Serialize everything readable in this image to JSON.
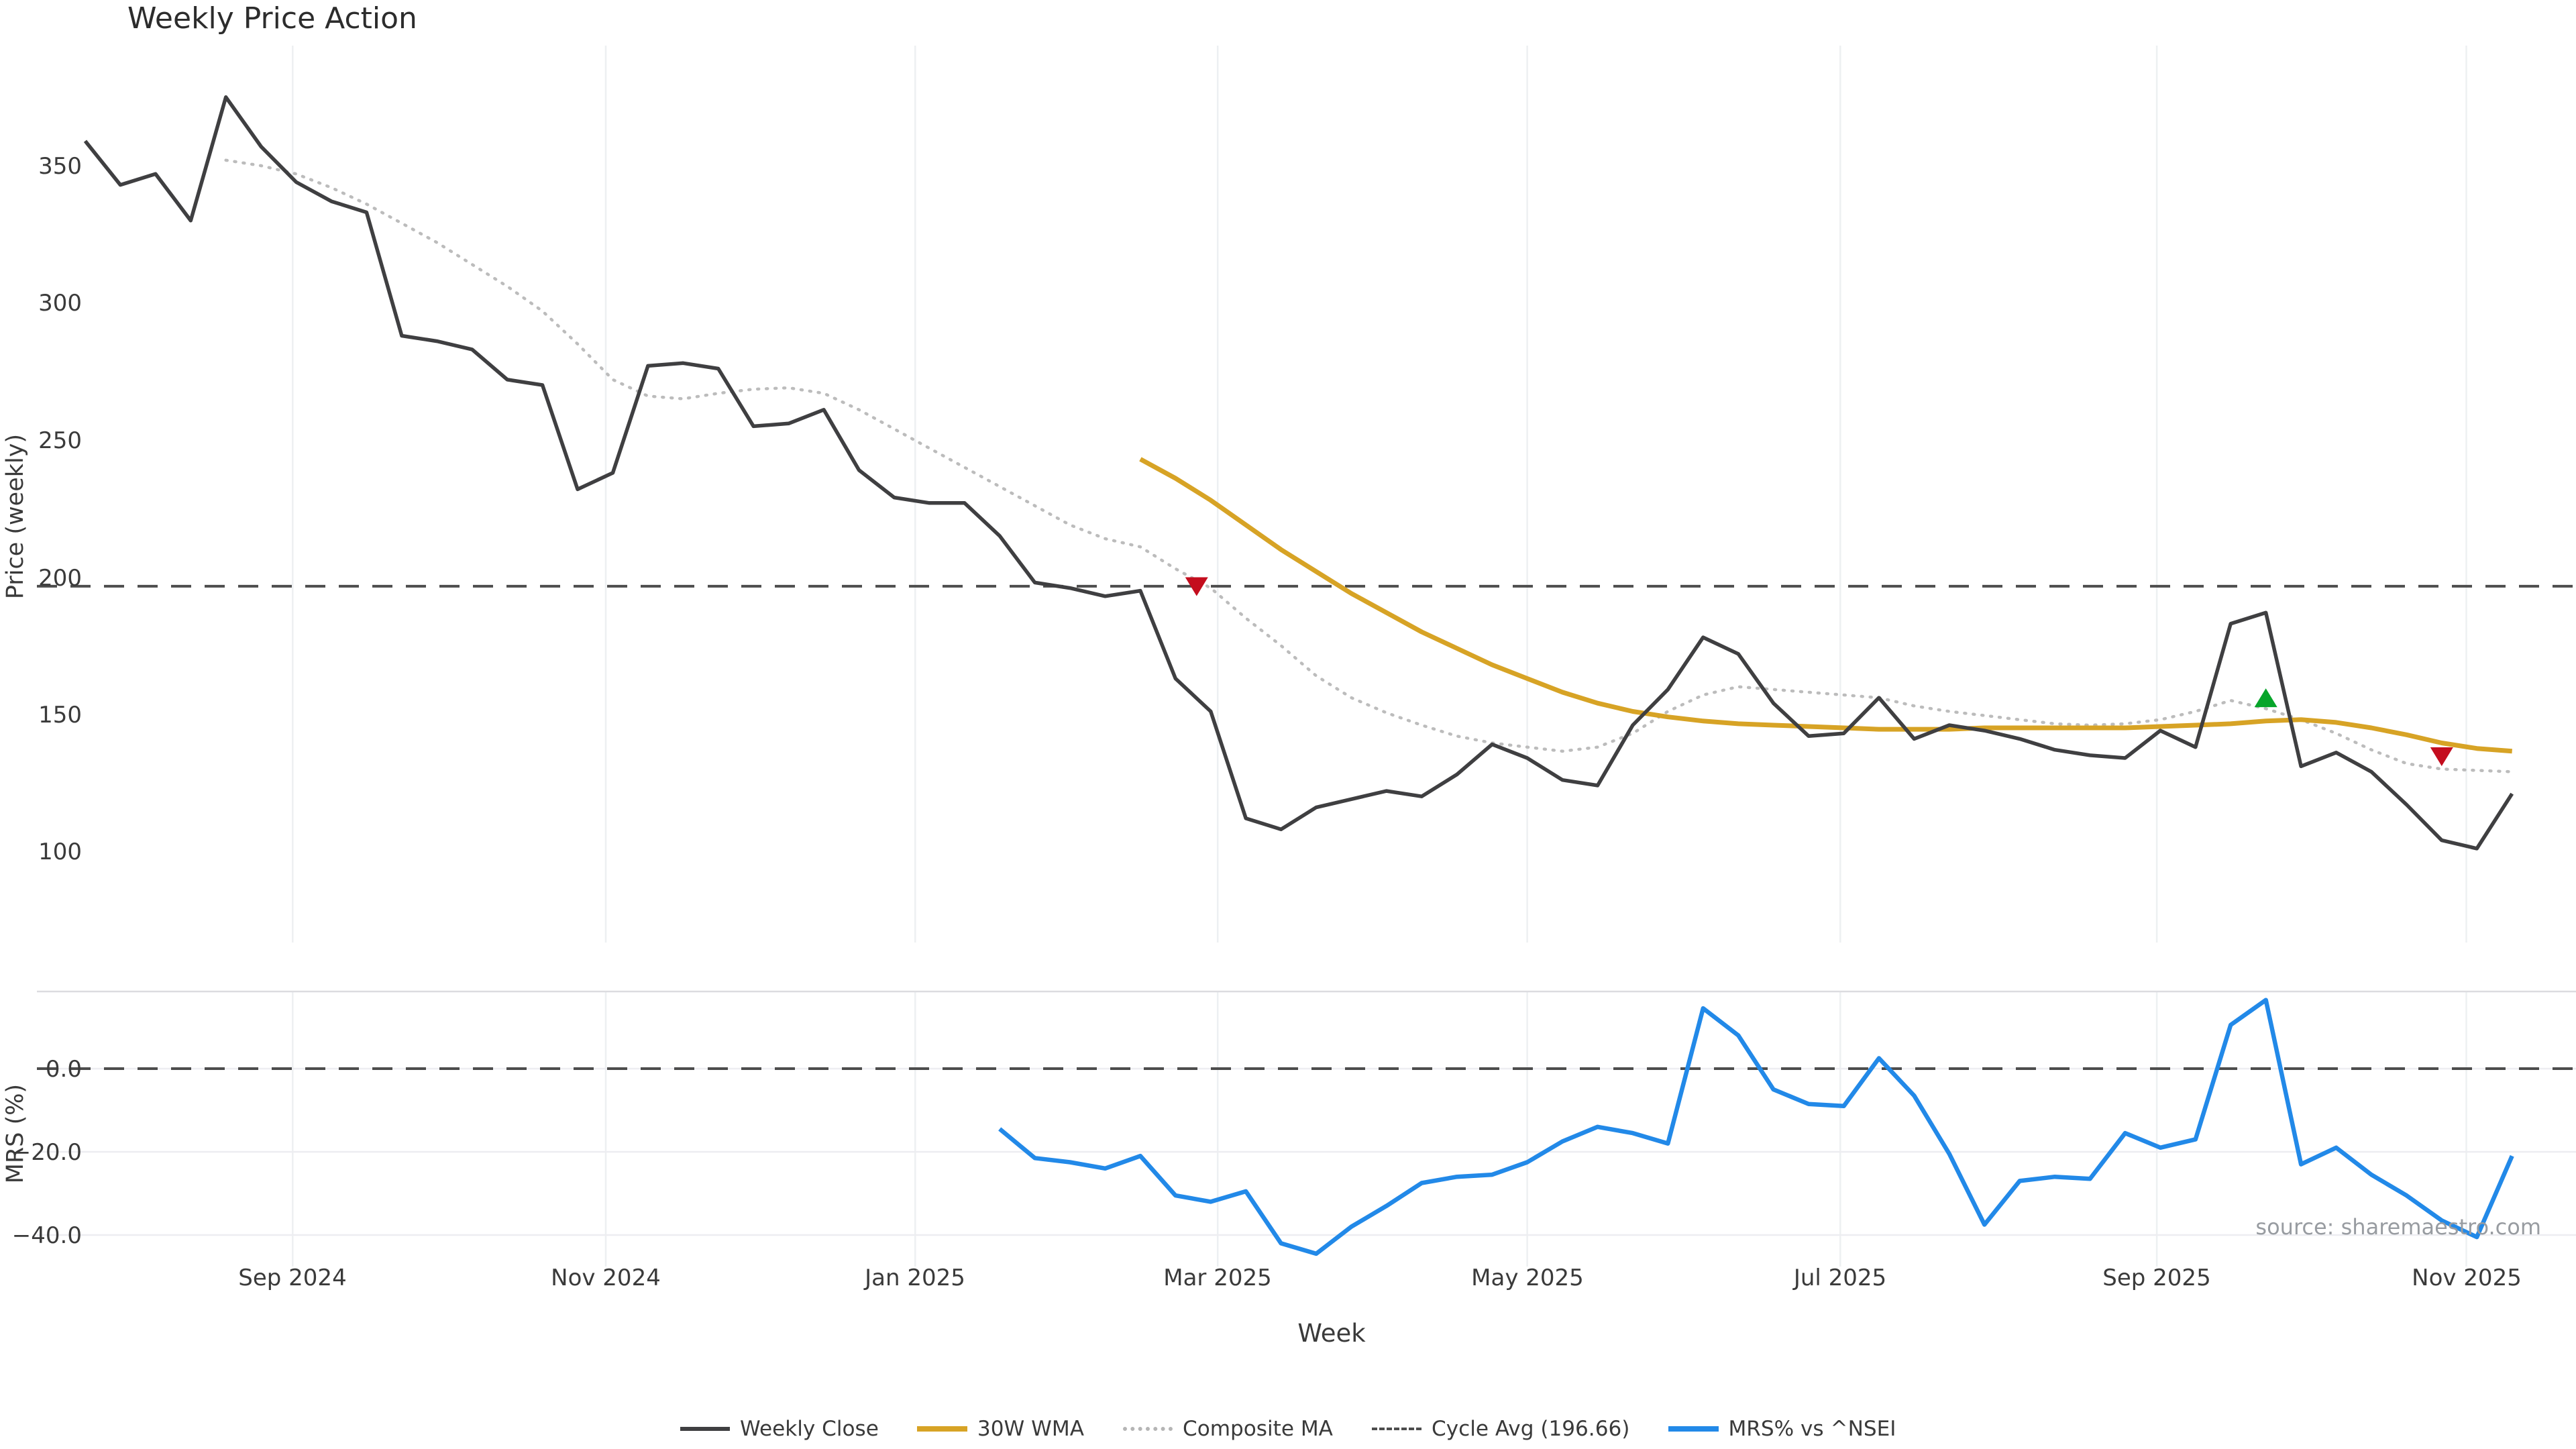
{
  "title": "Weekly Price Action",
  "xlabel": "Week",
  "source": "source: sharemaestro.com",
  "price_panel_ylabel": "Price (weekly)",
  "mrs_panel_ylabel": "MRS (%)",
  "price_ticks": [
    "350",
    "300",
    "250",
    "200",
    "150",
    "100"
  ],
  "mrs_ticks": [
    "0.0",
    "−20.0",
    "−40.0"
  ],
  "x_tick_labels": [
    "Sep 2024",
    "Nov 2024",
    "Jan 2025",
    "Mar 2025",
    "May 2025",
    "Jul 2025",
    "Sep 2025",
    "Nov 2025"
  ],
  "legend": {
    "items": [
      {
        "label": "Weekly Close",
        "color": "#3f3f41",
        "style": "solid"
      },
      {
        "label": "30W WMA",
        "color": "#d7a325",
        "style": "solid"
      },
      {
        "label": "Composite MA",
        "color": "#b5b5b5",
        "style": "dotted"
      },
      {
        "label": "Cycle Avg (196.66)",
        "color": "#4d4d4d",
        "style": "dashed"
      },
      {
        "label": "MRS% vs ^NSEI",
        "color": "#2289e8",
        "style": "solid"
      }
    ]
  },
  "colors": {
    "weekly_close": "#3f3f41",
    "wma_30": "#d7a325",
    "composite_ma": "#bcbcbc",
    "cycle_avg": "#4d4d4d",
    "mrs_line": "#2289e8",
    "marker_red": "#c40d1e",
    "marker_green": "#07a52a",
    "gridline": "#edf0f2",
    "mrs_hgrid": "#ededf1",
    "mrs_top_border": "#dcdce0"
  },
  "chart_data": [
    {
      "type": "line",
      "panel": "price",
      "title": "Weekly Price Action",
      "xlabel": "Week",
      "ylabel": "Price (weekly)",
      "ylim": [
        82,
        392
      ],
      "yticks": [
        350,
        300,
        250,
        200,
        150,
        100
      ],
      "grid": "vertical-only",
      "legend_position": "bottom-center",
      "x_unit": "weekly index, late Jul 2024 to mid Nov 2025",
      "n_points": 70,
      "x_ticks": [
        {
          "index": 5.9,
          "label": "Sep 2024"
        },
        {
          "index": 14.8,
          "label": "Nov 2024"
        },
        {
          "index": 23.6,
          "label": "Jan 2025"
        },
        {
          "index": 32.2,
          "label": "Mar 2025"
        },
        {
          "index": 41.0,
          "label": "May 2025"
        },
        {
          "index": 49.9,
          "label": "Jul 2025"
        },
        {
          "index": 58.9,
          "label": "Sep 2025"
        },
        {
          "index": 67.7,
          "label": "Nov 2025"
        }
      ],
      "series": [
        {
          "name": "Weekly Close",
          "style": "solid",
          "width": 5.5,
          "color": "#3f3f41",
          "start_index": 0,
          "values": [
            359,
            343,
            347,
            330,
            375,
            357,
            344,
            337,
            333,
            288,
            286,
            283,
            272,
            270,
            232,
            238,
            277,
            278,
            276,
            255,
            256,
            261,
            239,
            229,
            227,
            227,
            215,
            198,
            196,
            193,
            195,
            163,
            151,
            112,
            108,
            116,
            119,
            122,
            120,
            128,
            139,
            134,
            126,
            124,
            146,
            159,
            178,
            172,
            154,
            142,
            143,
            156,
            141,
            146,
            144,
            141,
            137,
            135,
            134,
            144,
            138,
            183,
            187,
            131,
            136,
            129,
            117,
            104,
            101,
            121
          ]
        },
        {
          "name": "Composite MA",
          "style": "dotted",
          "width": 4.5,
          "color": "#bcbcbc",
          "start_index": 4,
          "values": [
            352,
            350,
            347,
            342,
            336,
            329,
            322,
            314,
            306,
            297,
            285,
            272,
            266,
            265,
            267,
            268.5,
            269,
            267,
            261,
            254,
            247,
            240,
            233,
            226,
            219,
            214,
            211,
            203,
            196,
            185,
            175,
            164,
            156,
            150.5,
            146,
            142,
            139.5,
            138,
            136.5,
            138,
            143,
            151,
            157,
            160,
            159,
            158,
            157,
            156,
            153,
            151,
            149.5,
            148,
            146.5,
            146,
            146.5,
            148,
            151,
            155,
            152,
            148,
            143,
            137,
            132,
            130,
            129.5,
            129
          ]
        },
        {
          "name": "30W WMA",
          "style": "solid",
          "width": 7,
          "color": "#d7a325",
          "start_index": 30,
          "values": [
            243,
            236,
            228,
            219,
            210,
            202,
            194,
            187,
            180,
            174,
            168,
            163,
            158,
            154,
            151,
            149,
            147.5,
            146.5,
            146,
            145.5,
            145,
            144.5,
            144.5,
            144.5,
            145,
            145,
            145,
            145,
            145,
            145.5,
            146,
            146.5,
            147.5,
            148,
            147,
            145,
            142.5,
            139.5,
            137.5,
            136.5
          ]
        },
        {
          "name": "Cycle Avg (196.66)",
          "style": "dashed",
          "width": 4,
          "color": "#4d4d4d",
          "constant": 196.66
        }
      ],
      "markers": [
        {
          "shape": "triangle-down",
          "color": "#c40d1e",
          "index": 31.6,
          "value": 196.5
        },
        {
          "shape": "triangle-up",
          "color": "#07a52a",
          "index": 62,
          "value": 156
        },
        {
          "shape": "triangle-down",
          "color": "#c40d1e",
          "index": 67,
          "value": 134.5
        }
      ]
    },
    {
      "type": "line",
      "panel": "mrs",
      "ylabel": "MRS (%)",
      "ylim": [
        -48,
        20
      ],
      "yticks": [
        0.0,
        -20.0,
        -40.0
      ],
      "grid": "horizontal-and-vertical",
      "series": [
        {
          "name": "MRS% vs ^NSEI",
          "style": "solid",
          "width": 6.5,
          "color": "#2289e8",
          "start_index": 26,
          "values": [
            -14.5,
            -21.5,
            -22.5,
            -24,
            -21,
            -30.5,
            -32,
            -29.5,
            -42,
            -44.5,
            -38,
            -33,
            -27.5,
            -26,
            -25.5,
            -22.5,
            -17.5,
            -14,
            -15.5,
            -18,
            14.5,
            8,
            -5,
            -8.5,
            -9,
            2.5,
            -6.5,
            -20.5,
            -37.5,
            -27,
            -26,
            -26.5,
            -15.5,
            -19,
            -17,
            10.5,
            16.5,
            -23,
            -19,
            -25.5,
            -30.5,
            -36.5,
            -40.5,
            -21
          ]
        },
        {
          "name": "Zero line",
          "style": "dashed",
          "width": 4,
          "color": "#4d4d4d",
          "constant": 0
        }
      ]
    }
  ]
}
